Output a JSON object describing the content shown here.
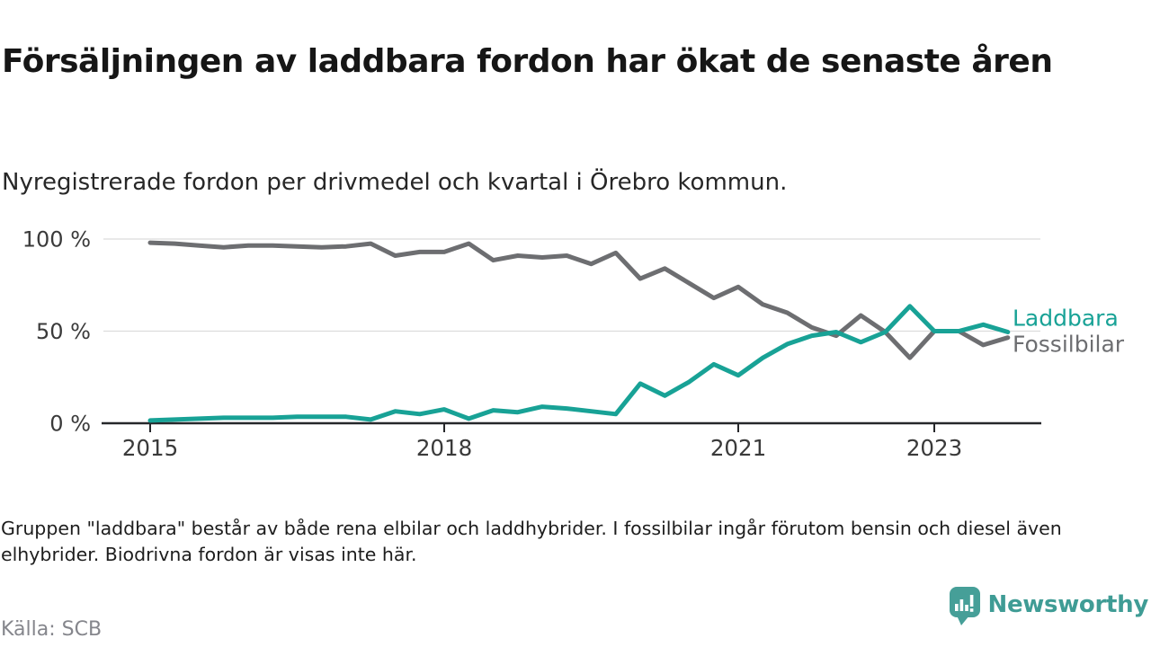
{
  "header": {
    "title": "Försäljningen av laddbara fordon har ökat de senaste åren",
    "subtitle": "Nyregistrerade fordon per drivmedel och kvartal i Örebro kommun."
  },
  "chart_data": {
    "type": "line",
    "title": "Nyregistrerade fordon per drivmedel och kvartal i Örebro kommun",
    "x_unit": "quarter",
    "categories": [
      "2015 Q1",
      "2015 Q2",
      "2015 Q3",
      "2015 Q4",
      "2016 Q1",
      "2016 Q2",
      "2016 Q3",
      "2016 Q4",
      "2017 Q1",
      "2017 Q2",
      "2017 Q3",
      "2017 Q4",
      "2018 Q1",
      "2018 Q2",
      "2018 Q3",
      "2018 Q4",
      "2019 Q1",
      "2019 Q2",
      "2019 Q3",
      "2019 Q4",
      "2020 Q1",
      "2020 Q2",
      "2020 Q3",
      "2020 Q4",
      "2021 Q1",
      "2021 Q2",
      "2021 Q3",
      "2021 Q4",
      "2022 Q1",
      "2022 Q2",
      "2022 Q3",
      "2022 Q4",
      "2023 Q1",
      "2023 Q2",
      "2023 Q3",
      "2023 Q4"
    ],
    "series": [
      {
        "name": "Laddbara",
        "color": "#18a296",
        "values": [
          1.5,
          2,
          2.5,
          3,
          3,
          3,
          3.5,
          3.5,
          3.5,
          2,
          6.5,
          5,
          7.5,
          2.5,
          7,
          6,
          9,
          8,
          6.5,
          5,
          21.5,
          15,
          22.5,
          32,
          26,
          35.5,
          43,
          47.5,
          49.5,
          44,
          49.5,
          63.5,
          50,
          50,
          53.5,
          49.5
        ]
      },
      {
        "name": "Fossilbilar",
        "color": "#6d6e71",
        "values": [
          98,
          97.5,
          96.5,
          95.5,
          96.5,
          96.5,
          96,
          95.5,
          96,
          97.5,
          91,
          93,
          93,
          97.5,
          88.5,
          91,
          90,
          91,
          86.5,
          92.5,
          78.5,
          84,
          76,
          68,
          74,
          64.5,
          60,
          52,
          47.5,
          58.5,
          49.5,
          35.5,
          50,
          50,
          42.5,
          46.5
        ]
      }
    ],
    "ylim": [
      0,
      100
    ],
    "yticks": [
      {
        "value": 0,
        "label": "0 %"
      },
      {
        "value": 50,
        "label": "50 %"
      },
      {
        "value": 100,
        "label": "100 %"
      }
    ],
    "xticks": [
      {
        "label": "2015",
        "quarter_index": 0
      },
      {
        "label": "2018",
        "quarter_index": 12
      },
      {
        "label": "2021",
        "quarter_index": 24
      },
      {
        "label": "2023",
        "quarter_index": 32
      }
    ],
    "grid": "horizontal",
    "gridline_color": "#dcdcdc",
    "axis_color": "#26272a",
    "tick_label_color": "#3a3a3a",
    "legend_position": "end-of-line-labels-right"
  },
  "footer": {
    "footnote": "Gruppen \"laddbara\" består av både rena elbilar och laddhybrider. I fossilbilar ingår förutom bensin och diesel även elhybrider. Biodrivna fordon är visas inte här.",
    "source": "Källa: SCB",
    "brand": "Newsworthy",
    "brand_color": "#3f9c95"
  }
}
